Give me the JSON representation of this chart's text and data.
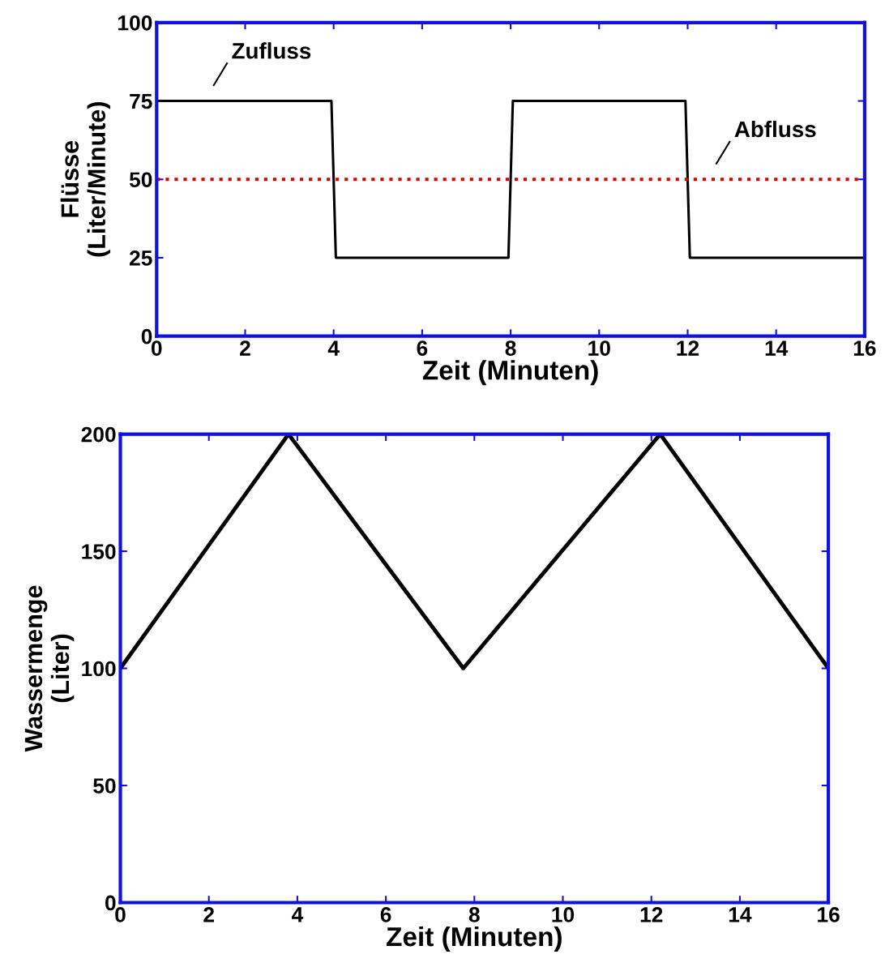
{
  "chart_data": [
    {
      "type": "line",
      "xlabel": "Zeit (Minuten)",
      "ylabel": "Flüsse\n(Liter/Minute)",
      "xlim": [
        0,
        16
      ],
      "xticks": [
        0,
        2,
        4,
        6,
        8,
        10,
        12,
        14,
        16
      ],
      "ylim": [
        0,
        100
      ],
      "yticks": [
        0,
        25,
        50,
        75,
        100
      ],
      "grid": false,
      "legend": false,
      "series": [
        {
          "name": "Zufluss",
          "color": "#000000",
          "line_style": "solid",
          "x": [
            0,
            3.95,
            4.05,
            7.95,
            8.05,
            11.95,
            12.05,
            16
          ],
          "values": [
            75,
            75,
            25,
            25,
            75,
            75,
            25,
            25
          ]
        },
        {
          "name": "Abfluss",
          "color": "#dd0000",
          "line_style": "dotted",
          "x": [
            0,
            16
          ],
          "values": [
            50,
            50
          ]
        }
      ]
    },
    {
      "type": "line",
      "xlabel": "Zeit (Minuten)",
      "ylabel": "Wassermenge\n(Liter)",
      "xlim": [
        0,
        16
      ],
      "xticks": [
        0,
        2,
        4,
        6,
        8,
        10,
        12,
        14,
        16
      ],
      "ylim": [
        0,
        200
      ],
      "yticks": [
        0,
        50,
        100,
        150,
        200
      ],
      "grid": false,
      "legend": false,
      "series": [
        {
          "color": "#000000",
          "line_style": "solid",
          "x": [
            0,
            3.8,
            7.75,
            12.2,
            16
          ],
          "values": [
            100,
            200,
            100,
            200,
            100
          ]
        }
      ]
    }
  ]
}
